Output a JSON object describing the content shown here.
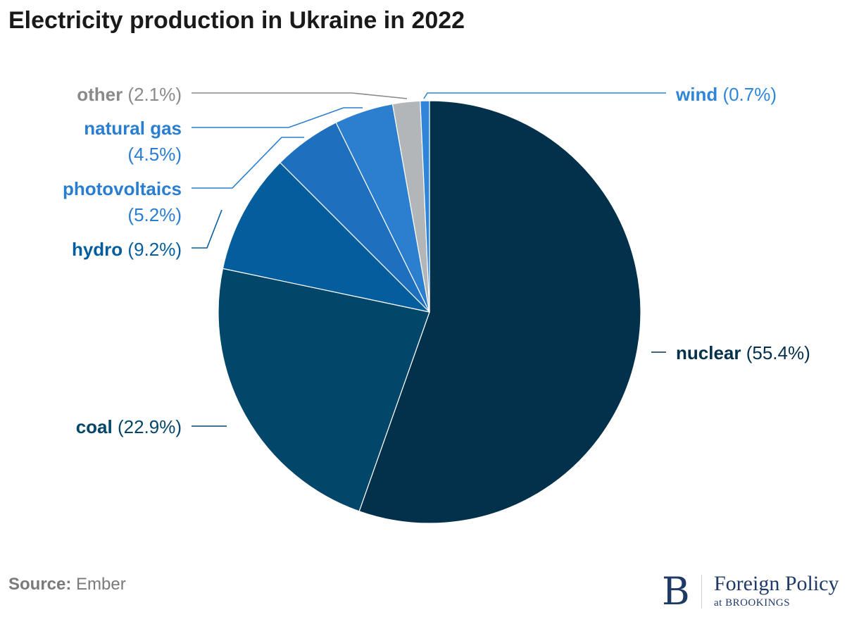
{
  "title": "Electricity production in Ukraine in 2022",
  "source": {
    "label": "Source:",
    "value": "Ember"
  },
  "logo": {
    "mark": "B",
    "name": "Foreign Policy",
    "sub": "at BROOKINGS"
  },
  "chart_data": {
    "type": "pie",
    "title": "Electricity production in Ukraine in 2022",
    "start_angle_deg": 0,
    "direction": "clockwise",
    "slices": [
      {
        "name": "nuclear",
        "pct_label": "(55.4%)",
        "value": 55.4,
        "color": "#03304a",
        "label_color": "#03304a"
      },
      {
        "name": "coal",
        "pct_label": "(22.9%)",
        "value": 22.9,
        "color": "#02466a",
        "label_color": "#02466a"
      },
      {
        "name": "hydro",
        "pct_label": "(9.2%)",
        "value": 9.2,
        "color": "#045e9e",
        "label_color": "#045e9e"
      },
      {
        "name": "photovoltaics",
        "pct_label": "(5.2%)",
        "value": 5.2,
        "color": "#1e6fbe",
        "label_color": "#2a7ecf"
      },
      {
        "name": "natural gas",
        "pct_label": "(4.5%)",
        "value": 4.5,
        "color": "#2b7fce",
        "label_color": "#2a7ecf"
      },
      {
        "name": "other",
        "pct_label": "(2.1%)",
        "value": 2.1,
        "color": "#b3b6b8",
        "label_color": "#8a8a8a"
      },
      {
        "name": "wind",
        "pct_label": "(0.7%)",
        "value": 0.7,
        "color": "#2f86d8",
        "label_color": "#2f86d8"
      }
    ]
  }
}
